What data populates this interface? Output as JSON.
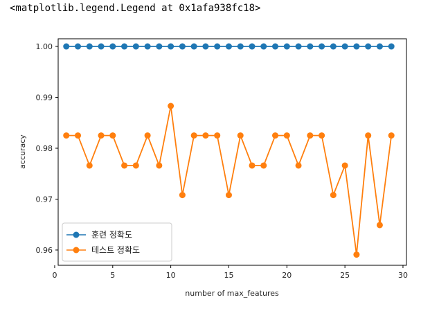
{
  "output_line": "<matplotlib.legend.Legend at 0x1afa938fc18>",
  "chart_data": {
    "type": "line",
    "xlabel": "number of max_features",
    "ylabel": "accuracy",
    "xlim": [
      0.3,
      30.3
    ],
    "ylim": [
      0.957,
      1.0015
    ],
    "xticks": [
      0,
      5,
      10,
      15,
      20,
      25,
      30
    ],
    "yticks": [
      0.96,
      0.97,
      0.98,
      0.99,
      1.0
    ],
    "xtick_labels": [
      "0",
      "5",
      "10",
      "15",
      "20",
      "25",
      "30"
    ],
    "ytick_labels": [
      "0.96",
      "0.97",
      "0.98",
      "0.99",
      "1.00"
    ],
    "grid": false,
    "legend_position": "lower-left",
    "x": [
      1,
      2,
      3,
      4,
      5,
      6,
      7,
      8,
      9,
      10,
      11,
      12,
      13,
      14,
      15,
      16,
      17,
      18,
      19,
      20,
      21,
      22,
      23,
      24,
      25,
      26,
      27,
      28,
      29
    ],
    "series": [
      {
        "name": "훈련 정확도",
        "color": "#1f77b4",
        "values": [
          1.0,
          1.0,
          1.0,
          1.0,
          1.0,
          1.0,
          1.0,
          1.0,
          1.0,
          1.0,
          1.0,
          1.0,
          1.0,
          1.0,
          1.0,
          1.0,
          1.0,
          1.0,
          1.0,
          1.0,
          1.0,
          1.0,
          1.0,
          1.0,
          1.0,
          1.0,
          1.0,
          1.0,
          1.0
        ]
      },
      {
        "name": "테스트 정확도",
        "color": "#ff7f0e",
        "values": [
          0.9825,
          0.9825,
          0.9766,
          0.9825,
          0.9825,
          0.9766,
          0.9766,
          0.9825,
          0.9766,
          0.9883,
          0.9708,
          0.9825,
          0.9825,
          0.9825,
          0.9708,
          0.9825,
          0.9766,
          0.9766,
          0.9825,
          0.9825,
          0.9766,
          0.9825,
          0.9825,
          0.9708,
          0.9766,
          0.9591,
          0.9825,
          0.9649,
          0.9825
        ]
      }
    ]
  }
}
